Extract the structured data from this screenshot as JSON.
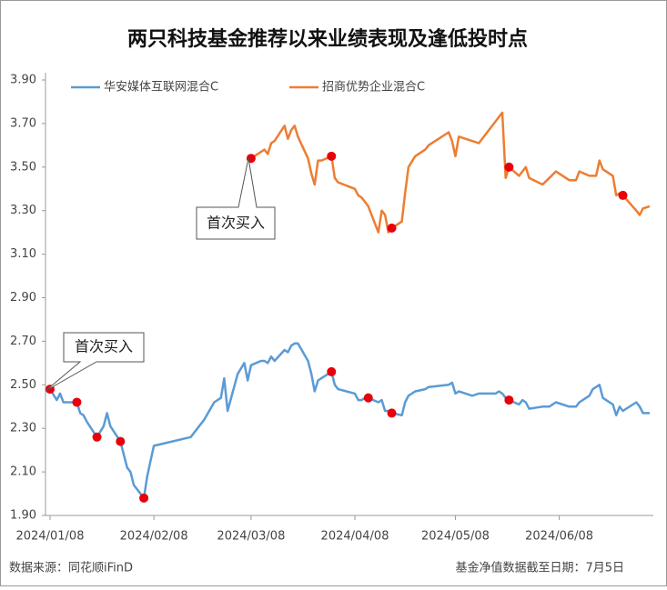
{
  "chart_data": {
    "type": "line",
    "title": "两只科技基金推荐以来业绩表现及逢低投时点",
    "x": [
      "2024/01/08",
      "2024/01/10",
      "2024/01/11",
      "2024/01/12",
      "2024/01/16",
      "2024/01/17",
      "2024/01/18",
      "2024/01/19",
      "2024/01/22",
      "2024/01/24",
      "2024/01/25",
      "2024/01/26",
      "2024/01/29",
      "2024/01/30",
      "2024/01/31",
      "2024/02/01",
      "2024/02/02",
      "2024/02/05",
      "2024/02/06",
      "2024/02/07",
      "2024/02/08",
      "2024/02/19",
      "2024/02/21",
      "2024/02/23",
      "2024/02/26",
      "2024/02/28",
      "2024/02/29",
      "2024/03/01",
      "2024/03/04",
      "2024/03/06",
      "2024/03/07",
      "2024/03/08",
      "2024/03/11",
      "2024/03/12",
      "2024/03/13",
      "2024/03/14",
      "2024/03/15",
      "2024/03/18",
      "2024/03/19",
      "2024/03/20",
      "2024/03/21",
      "2024/03/22",
      "2024/03/25",
      "2024/03/26",
      "2024/03/27",
      "2024/03/28",
      "2024/03/29",
      "2024/04/01",
      "2024/04/02",
      "2024/04/03",
      "2024/04/08",
      "2024/04/09",
      "2024/04/10",
      "2024/04/11",
      "2024/04/12",
      "2024/04/15",
      "2024/04/16",
      "2024/04/17",
      "2024/04/18",
      "2024/04/19",
      "2024/04/22",
      "2024/04/23",
      "2024/04/24",
      "2024/04/26",
      "2024/04/29",
      "2024/04/30",
      "2024/05/06",
      "2024/05/07",
      "2024/05/08",
      "2024/05/09",
      "2024/05/13",
      "2024/05/15",
      "2024/05/17",
      "2024/05/20",
      "2024/05/21",
      "2024/05/22",
      "2024/05/23",
      "2024/05/24",
      "2024/05/27",
      "2024/05/28",
      "2024/05/29",
      "2024/05/30",
      "2024/06/03",
      "2024/06/05",
      "2024/06/07",
      "2024/06/11",
      "2024/06/13",
      "2024/06/14",
      "2024/06/17",
      "2024/06/18",
      "2024/06/19",
      "2024/06/20",
      "2024/06/21",
      "2024/06/24",
      "2024/06/25",
      "2024/06/26",
      "2024/06/27",
      "2024/07/01",
      "2024/07/02",
      "2024/07/03",
      "2024/07/05"
    ],
    "series": [
      {
        "name": "华安媒体互联网混合C",
        "color": "#5b9bd5",
        "values": [
          2.48,
          2.43,
          2.46,
          2.42,
          2.42,
          2.37,
          2.36,
          2.33,
          2.26,
          2.31,
          2.37,
          2.31,
          2.24,
          2.18,
          2.12,
          2.1,
          2.04,
          1.98,
          2.08,
          2.15,
          2.22,
          2.26,
          2.3,
          2.34,
          2.42,
          2.44,
          2.53,
          2.38,
          2.55,
          2.6,
          2.52,
          2.59,
          2.61,
          2.61,
          2.6,
          2.63,
          2.61,
          2.66,
          2.65,
          2.68,
          2.69,
          2.69,
          2.61,
          2.55,
          2.47,
          2.52,
          2.53,
          2.56,
          2.5,
          2.48,
          2.46,
          2.43,
          2.43,
          2.44,
          2.44,
          2.42,
          2.43,
          2.38,
          2.38,
          2.37,
          2.36,
          2.42,
          2.45,
          2.47,
          2.48,
          2.49,
          2.5,
          2.51,
          2.46,
          2.47,
          2.45,
          2.46,
          2.46,
          2.46,
          2.47,
          2.46,
          2.44,
          2.43,
          2.41,
          2.43,
          2.42,
          2.39,
          2.4,
          2.4,
          2.42,
          2.4,
          2.4,
          2.42,
          2.45,
          2.48,
          2.49,
          2.5,
          2.44,
          2.41,
          2.36,
          2.4,
          2.38,
          2.42,
          2.4,
          2.37,
          2.37
        ]
      },
      {
        "name": "招商优势企业混合C",
        "color": "#ed7d31",
        "values": [
          null,
          null,
          null,
          null,
          null,
          null,
          null,
          null,
          null,
          null,
          null,
          null,
          null,
          null,
          null,
          null,
          null,
          null,
          null,
          null,
          null,
          null,
          null,
          null,
          null,
          null,
          null,
          null,
          null,
          null,
          null,
          3.54,
          3.57,
          3.58,
          3.56,
          3.61,
          3.62,
          3.69,
          3.63,
          3.67,
          3.69,
          3.64,
          3.54,
          3.47,
          3.42,
          3.53,
          3.53,
          3.55,
          3.45,
          3.43,
          3.4,
          3.37,
          3.36,
          3.34,
          3.32,
          3.2,
          3.3,
          3.28,
          3.2,
          3.22,
          3.25,
          3.38,
          3.5,
          3.55,
          3.58,
          3.6,
          3.66,
          3.62,
          3.55,
          3.64,
          3.62,
          3.61,
          3.65,
          3.71,
          3.73,
          3.75,
          3.45,
          3.5,
          3.46,
          3.48,
          3.5,
          3.45,
          3.42,
          3.45,
          3.48,
          3.44,
          3.44,
          3.48,
          3.46,
          3.46,
          3.46,
          3.53,
          3.49,
          3.46,
          3.37,
          3.38,
          3.37,
          3.3,
          3.28,
          3.31,
          3.32
        ]
      }
    ],
    "buy_points": {
      "color": "#e8000b",
      "points": [
        {
          "x": "2024/01/08",
          "y": 2.48
        },
        {
          "x": "2024/01/16",
          "y": 2.42
        },
        {
          "x": "2024/01/22",
          "y": 2.26
        },
        {
          "x": "2024/01/29",
          "y": 2.24
        },
        {
          "x": "2024/02/05",
          "y": 1.98
        },
        {
          "x": "2024/04/01",
          "y": 2.56
        },
        {
          "x": "2024/04/12",
          "y": 2.44
        },
        {
          "x": "2024/04/19",
          "y": 2.37
        },
        {
          "x": "2024/05/24",
          "y": 2.43
        },
        {
          "x": "2024/03/08",
          "y": 3.54
        },
        {
          "x": "2024/04/01",
          "y": 3.55
        },
        {
          "x": "2024/04/19",
          "y": 3.22
        },
        {
          "x": "2024/05/24",
          "y": 3.5
        },
        {
          "x": "2024/06/27",
          "y": 3.37
        }
      ]
    },
    "ylim": [
      1.9,
      3.9
    ],
    "yticks": [
      {
        "value": 1.9,
        "label": "1.90"
      },
      {
        "value": 2.1,
        "label": "2.10"
      },
      {
        "value": 2.3,
        "label": "2.30"
      },
      {
        "value": 2.5,
        "label": "2.50"
      },
      {
        "value": 2.7,
        "label": "2.70"
      },
      {
        "value": 2.9,
        "label": "2.90"
      },
      {
        "value": 3.1,
        "label": "3.10"
      },
      {
        "value": 3.3,
        "label": "3.30"
      },
      {
        "value": 3.5,
        "label": "3.50"
      },
      {
        "value": 3.7,
        "label": "3.70"
      },
      {
        "value": 3.9,
        "label": "3.90"
      }
    ],
    "xticks": [
      "2024/01/08",
      "2024/02/08",
      "2024/03/08",
      "2024/04/08",
      "2024/05/08",
      "2024/06/08"
    ],
    "annotations": [
      "首次买入",
      "首次买入"
    ],
    "source": "数据来源：同花顺iFinD",
    "note": "基金净值数据截至日期：7月5日"
  }
}
